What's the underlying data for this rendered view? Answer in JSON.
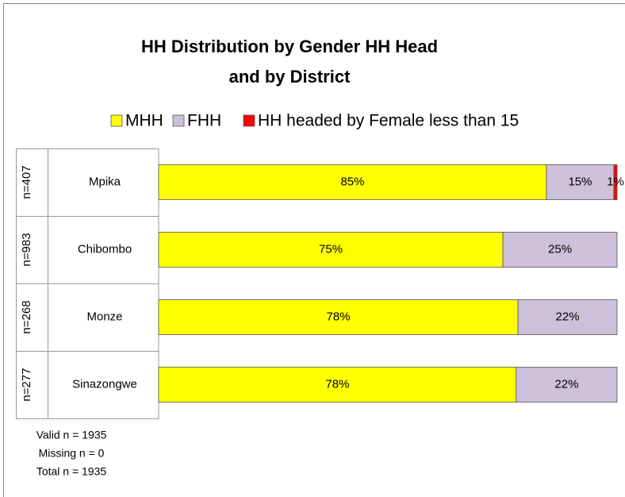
{
  "chart_data": {
    "type": "stacked_bar_horizontal",
    "title_lines": [
      "HH Distribution by Gender HH Head",
      "and by District"
    ],
    "categories": [
      "Mpika",
      "Chibombo",
      "Monze",
      "Sinazongwe"
    ],
    "group_labels": [
      "n=407",
      "n=983",
      "n=268",
      "n=277"
    ],
    "series": [
      {
        "name": "MHH",
        "color": "#ffff00",
        "values": [
          84.6,
          75.1,
          78.4,
          78.0
        ],
        "value_labels": [
          "85%",
          "75%",
          "78%",
          "78%"
        ]
      },
      {
        "name": "FHH",
        "color": "#ccc0da",
        "values": [
          14.7,
          24.9,
          21.6,
          22.0
        ],
        "value_labels": [
          "15%",
          "25%",
          "22%",
          "22%"
        ]
      },
      {
        "name": "HH headed by Female less than 15",
        "color": "#ff0000",
        "values": [
          0.7,
          null,
          null,
          null
        ],
        "value_labels": [
          "1%",
          null,
          null,
          null
        ]
      }
    ],
    "xlim": [
      0,
      100
    ],
    "notes": [
      "Valid n = 1935",
      "Missing n = 0",
      "Total n = 1935"
    ]
  }
}
